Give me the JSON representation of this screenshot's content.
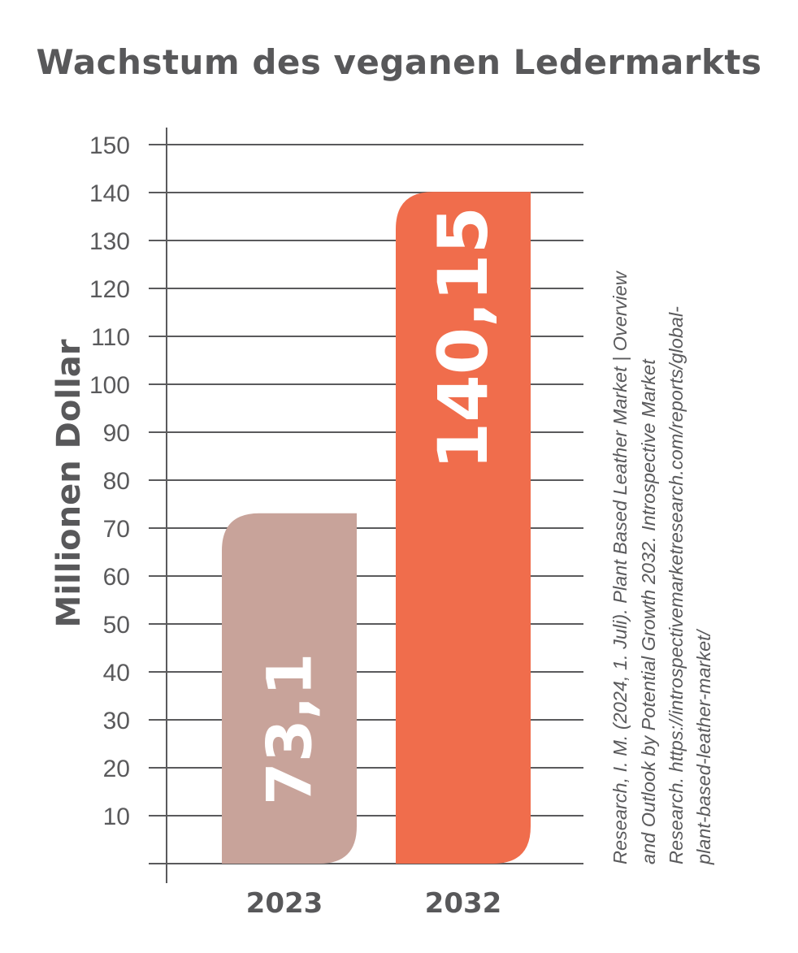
{
  "chart_data": {
    "type": "bar",
    "title": "Wachstum des veganen Ledermarkts",
    "ylabel": "Millionen Dollar",
    "xlabel": "",
    "categories": [
      "2023",
      "2032"
    ],
    "values": [
      73.1,
      140.15
    ],
    "value_labels": [
      "73,1",
      "140,15"
    ],
    "colors": [
      "#c8a39a",
      "#f06d4c"
    ],
    "ylim": [
      0,
      150
    ],
    "yticks": [
      10,
      20,
      30,
      40,
      50,
      60,
      70,
      80,
      90,
      100,
      110,
      120,
      130,
      140,
      150
    ],
    "grid": true,
    "source_lines": [
      "Research, I. M. (2024, 1. Juli). Plant Based Leather Market | Overview",
      "and Outlook by Potential Growth 2032. Introspective Market",
      "Research. https://introspectivemarketresearch.com/reports/global-",
      "plant-based-leather-market/"
    ]
  }
}
